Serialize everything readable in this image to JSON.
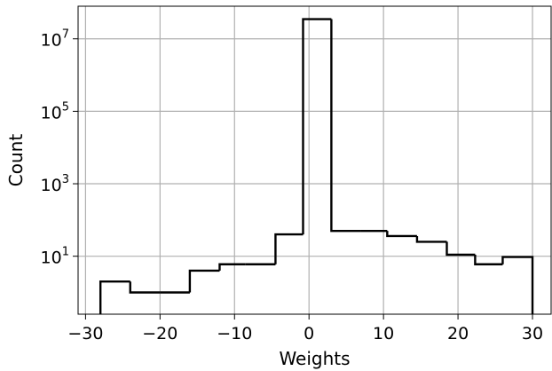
{
  "chart_data": {
    "type": "histogram",
    "title": "",
    "xlabel": "Weights",
    "ylabel": "Count",
    "xlim": [
      -31,
      32.5
    ],
    "ylim_log10": [
      -0.6,
      7.9
    ],
    "yscale": "log",
    "grid": true,
    "line_color": "#000000",
    "grid_color": "#b0b0b0",
    "x_ticks": [
      {
        "value": -30,
        "label": "−30"
      },
      {
        "value": -20,
        "label": "−20"
      },
      {
        "value": -10,
        "label": "−10"
      },
      {
        "value": 0,
        "label": "0"
      },
      {
        "value": 10,
        "label": "10"
      },
      {
        "value": 20,
        "label": "20"
      },
      {
        "value": 30,
        "label": "30"
      }
    ],
    "y_ticks": [
      {
        "value": 10,
        "base": "10",
        "exp": "1"
      },
      {
        "value": 1000,
        "base": "10",
        "exp": "3"
      },
      {
        "value": 100000,
        "base": "10",
        "exp": "5"
      },
      {
        "value": 10000000,
        "base": "10",
        "exp": "7"
      }
    ],
    "bin_edges": [
      -28,
      -24,
      -20,
      -16,
      -12,
      -8.5,
      -4.5,
      -0.8,
      3,
      7,
      10.5,
      14.5,
      18.5,
      22.3,
      26,
      30
    ],
    "counts": [
      2,
      1,
      1,
      4,
      6,
      6,
      40,
      35000000,
      50,
      50,
      36,
      25,
      11,
      6,
      9.5
    ]
  }
}
